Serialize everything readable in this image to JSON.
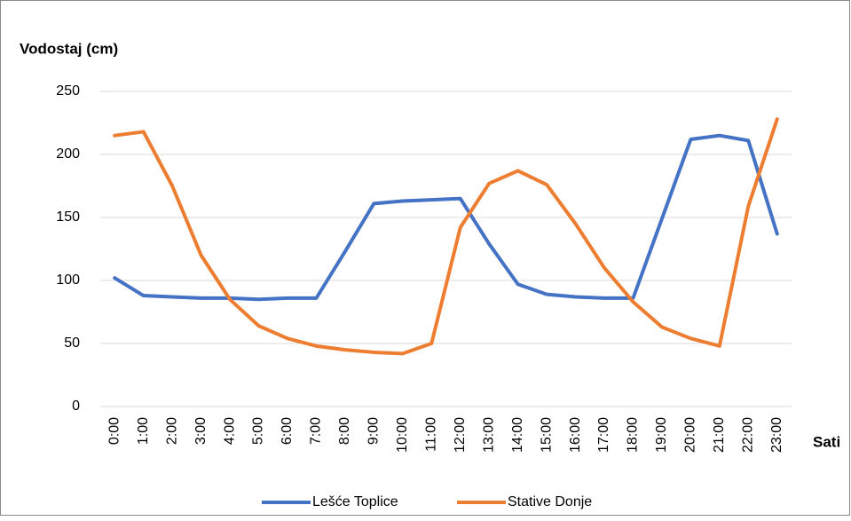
{
  "chart_data": {
    "type": "line",
    "y_label": "Vodostaj (cm)",
    "x_label": "Sati",
    "categories": [
      "0:00",
      "1:00",
      "2:00",
      "3:00",
      "4:00",
      "5:00",
      "6:00",
      "7:00",
      "8:00",
      "9:00",
      "10:00",
      "11:00",
      "12:00",
      "13:00",
      "14:00",
      "15:00",
      "16:00",
      "17:00",
      "18:00",
      "19:00",
      "20:00",
      "21:00",
      "22:00",
      "23:00"
    ],
    "series": [
      {
        "name": "Lešće Toplice",
        "color": "#4472c4",
        "values": [
          102,
          88,
          87,
          86,
          86,
          85,
          86,
          86,
          123,
          161,
          163,
          164,
          165,
          129,
          97,
          89,
          87,
          86,
          86,
          149,
          212,
          215,
          211,
          137
        ]
      },
      {
        "name": "Stative Donje",
        "color": "#ed7d31",
        "values": [
          215,
          218,
          175,
          120,
          85,
          64,
          54,
          48,
          45,
          43,
          42,
          50,
          142,
          177,
          187,
          176,
          145,
          110,
          83,
          63,
          54,
          48,
          159,
          228
        ]
      }
    ],
    "ylim": [
      0,
      250
    ],
    "yticks": [
      0,
      50,
      100,
      150,
      200,
      250
    ],
    "grid": true,
    "legend": "bottom"
  }
}
